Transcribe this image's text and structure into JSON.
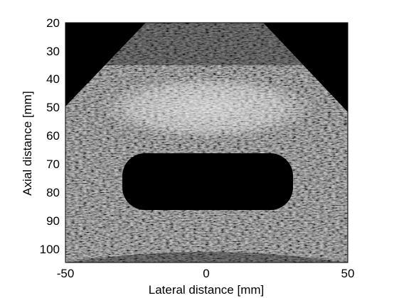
{
  "figure": {
    "xlabel": "Lateral distance [mm]",
    "ylabel": "Axial distance [mm]",
    "x_ticks": [
      "-50",
      "0",
      "50"
    ],
    "y_ticks": [
      "20",
      "30",
      "40",
      "50",
      "60",
      "70",
      "80",
      "90",
      "100"
    ],
    "x_range": [
      -50,
      50
    ],
    "y_range": [
      20,
      105
    ],
    "y_axis_direction": "down",
    "colormap": "grayscale",
    "background_color": "#000000",
    "axes_color": "#000000",
    "page_color": "#ffffff"
  },
  "image_content": {
    "type": "B-mode ultrasound image",
    "sector_shape": "trapezoidal",
    "regions": [
      {
        "name": "bright-band",
        "x_range_mm": [
          -33,
          35
        ],
        "y_range_mm": [
          41,
          60
        ],
        "brightness": "high"
      },
      {
        "name": "anechoic-cyst",
        "x_range_mm": [
          -29,
          30
        ],
        "y_range_mm": [
          66,
          86
        ],
        "brightness": "black"
      },
      {
        "name": "background-speckle",
        "brightness": "medium"
      }
    ]
  }
}
